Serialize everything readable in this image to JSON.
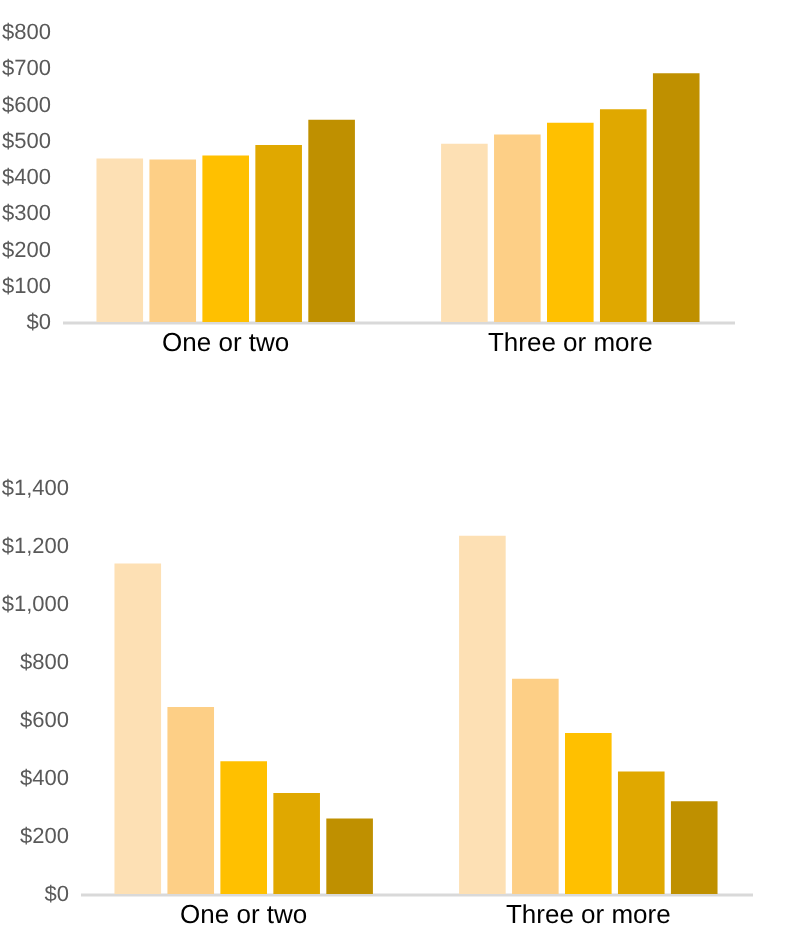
{
  "chart_data": [
    {
      "type": "bar",
      "categories": [
        "One or two",
        "Three or more"
      ],
      "series": [
        {
          "color": "#fde0b4",
          "values": [
            451,
            492
          ]
        },
        {
          "color": "#fdcf86",
          "values": [
            448,
            517
          ]
        },
        {
          "color": "#ffc000",
          "values": [
            459,
            550
          ]
        },
        {
          "color": "#e0a800",
          "values": [
            488,
            587
          ]
        },
        {
          "color": "#bf9000",
          "values": [
            558,
            686
          ]
        }
      ],
      "ylim": [
        0,
        800
      ],
      "yticks": [
        {
          "value": 0,
          "label": "$0"
        },
        {
          "value": 100,
          "label": "$100"
        },
        {
          "value": 200,
          "label": "$200"
        },
        {
          "value": 300,
          "label": "$300"
        },
        {
          "value": 400,
          "label": "$400"
        },
        {
          "value": 500,
          "label": "$500"
        },
        {
          "value": 600,
          "label": "$600"
        },
        {
          "value": 700,
          "label": "$700"
        },
        {
          "value": 800,
          "label": "$800"
        }
      ],
      "grid": false,
      "legend": false
    },
    {
      "type": "bar",
      "categories": [
        "One or two",
        "Three or more"
      ],
      "series": [
        {
          "color": "#fde0b4",
          "values": [
            1140,
            1235
          ]
        },
        {
          "color": "#fdcf86",
          "values": [
            645,
            742
          ]
        },
        {
          "color": "#ffc000",
          "values": [
            458,
            555
          ]
        },
        {
          "color": "#e0a800",
          "values": [
            348,
            422
          ]
        },
        {
          "color": "#bf9000",
          "values": [
            260,
            320
          ]
        }
      ],
      "ylim": [
        0,
        1400
      ],
      "yticks": [
        {
          "value": 0,
          "label": "$0"
        },
        {
          "value": 200,
          "label": "$200"
        },
        {
          "value": 400,
          "label": "$400"
        },
        {
          "value": 600,
          "label": "$600"
        },
        {
          "value": 800,
          "label": "$800"
        },
        {
          "value": 1000,
          "label": "$1,000"
        },
        {
          "value": 1200,
          "label": "$1,200"
        },
        {
          "value": 1400,
          "label": "$1,400"
        }
      ],
      "grid": false,
      "legend": false
    }
  ]
}
